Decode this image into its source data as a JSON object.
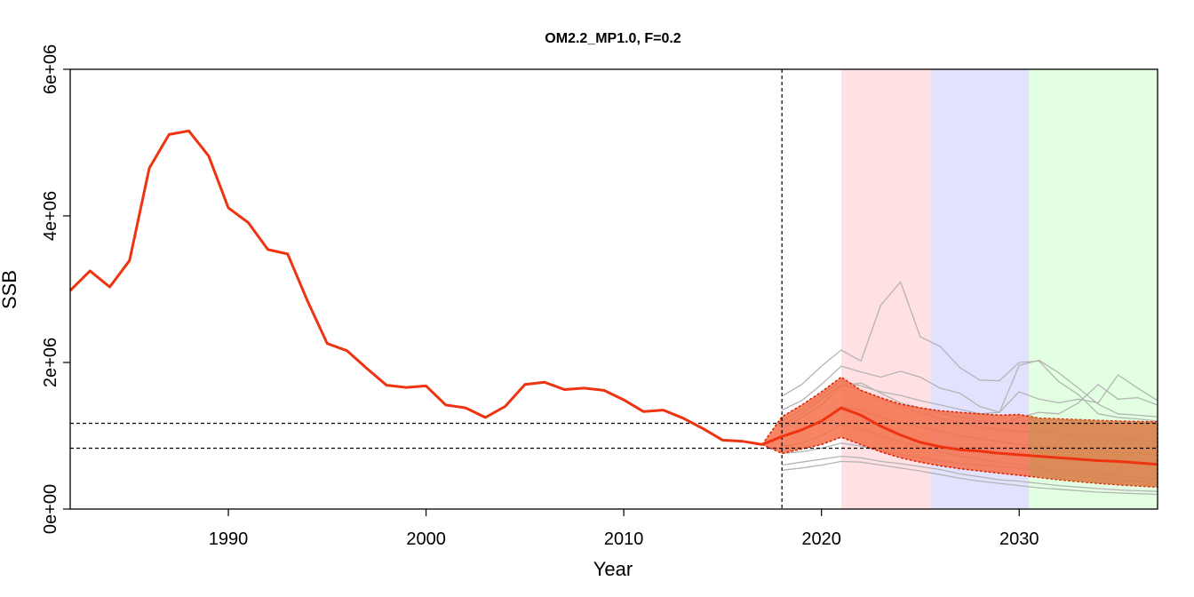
{
  "chart_data": {
    "type": "line",
    "title": "OM2.2_MP1.0, F=0.2",
    "xlabel": "Year",
    "ylabel": "SSB",
    "xlim": [
      1982,
      2037
    ],
    "ylim": [
      0,
      6000000
    ],
    "x_ticks": [
      1990,
      2000,
      2010,
      2020,
      2030
    ],
    "x_tick_labels": [
      "1990",
      "2000",
      "2010",
      "2020",
      "2030"
    ],
    "y_ticks": [
      0,
      2000000,
      4000000,
      6000000
    ],
    "y_tick_labels": [
      "0e+00",
      "2e+06",
      "4e+06",
      "6e+06"
    ],
    "grid": false,
    "legend": "none",
    "colors": {
      "main": "#ee3311",
      "ribbon": "#f4704a",
      "ribbon_late": "#d4904a",
      "iterations": "#b4b4b4",
      "period1": "#ffe0e3",
      "period2": "#e2e2ff",
      "period3": "#e2ffe2"
    },
    "shaded_periods": [
      {
        "from": 2021,
        "to": 2025.5,
        "color": "#ffe0e3"
      },
      {
        "from": 2025.5,
        "to": 2030.5,
        "color": "#e2e2ff"
      },
      {
        "from": 2030.5,
        "to": 2037,
        "color": "#e2ffe2"
      }
    ],
    "vertical_refline": 2018,
    "horizontal_reflines": [
      1170000,
      830000
    ],
    "historical": {
      "x": [
        1982,
        1983,
        1984,
        1985,
        1986,
        1987,
        1988,
        1989,
        1990,
        1991,
        1992,
        1993,
        1994,
        1995,
        1996,
        1997,
        1998,
        1999,
        2000,
        2001,
        2002,
        2003,
        2004,
        2005,
        2006,
        2007,
        2008,
        2009,
        2010,
        2011,
        2012,
        2013,
        2014,
        2015,
        2016,
        2017
      ],
      "y": [
        2980000,
        3250000,
        3030000,
        3390000,
        4650000,
        5110000,
        5160000,
        4820000,
        4110000,
        3910000,
        3540000,
        3480000,
        2840000,
        2260000,
        2160000,
        1920000,
        1690000,
        1660000,
        1680000,
        1420000,
        1380000,
        1250000,
        1400000,
        1700000,
        1730000,
        1630000,
        1650000,
        1620000,
        1490000,
        1330000,
        1350000,
        1240000,
        1100000,
        940000,
        925000,
        880000
      ]
    },
    "projection": {
      "x": [
        2017,
        2018,
        2019,
        2020,
        2021,
        2022,
        2023,
        2024,
        2025,
        2026,
        2027,
        2028,
        2029,
        2030,
        2031,
        2032,
        2033,
        2034,
        2035,
        2036,
        2037
      ],
      "median": [
        880000,
        990000,
        1080000,
        1200000,
        1380000,
        1280000,
        1130000,
        1010000,
        910000,
        850000,
        810000,
        790000,
        760000,
        740000,
        720000,
        700000,
        680000,
        660000,
        650000,
        630000,
        610000
      ],
      "upper": [
        880000,
        1260000,
        1420000,
        1600000,
        1800000,
        1620000,
        1520000,
        1430000,
        1380000,
        1340000,
        1320000,
        1300000,
        1280000,
        1290000,
        1240000,
        1230000,
        1220000,
        1210000,
        1200000,
        1195000,
        1190000
      ],
      "lower": [
        880000,
        760000,
        820000,
        880000,
        980000,
        880000,
        780000,
        700000,
        640000,
        590000,
        550000,
        520000,
        490000,
        460000,
        430000,
        400000,
        375000,
        350000,
        330000,
        315000,
        300000
      ]
    },
    "iterations": [
      {
        "x": [
          2018,
          2019,
          2020,
          2021,
          2022,
          2023,
          2024,
          2025,
          2026,
          2027,
          2028,
          2029,
          2030,
          2031,
          2032,
          2033,
          2034,
          2035,
          2036,
          2037
        ],
        "y": [
          1540000,
          1700000,
          1950000,
          2170000,
          2020000,
          2780000,
          3100000,
          2350000,
          2220000,
          1930000,
          1760000,
          1750000,
          2000000,
          2020000,
          1740000,
          1560000,
          1300000,
          1250000,
          1230000,
          1200000
        ]
      },
      {
        "x": [
          2018,
          2019,
          2020,
          2021,
          2022,
          2023,
          2024,
          2025,
          2026,
          2027,
          2028,
          2029,
          2030,
          2031,
          2032,
          2033,
          2034,
          2035,
          2036,
          2037
        ],
        "y": [
          1350000,
          1480000,
          1700000,
          1950000,
          1870000,
          1800000,
          1880000,
          1800000,
          1650000,
          1580000,
          1400000,
          1320000,
          1960000,
          2030000,
          1860000,
          1650000,
          1430000,
          1300000,
          1280000,
          1260000
        ]
      },
      {
        "x": [
          2018,
          2019,
          2020,
          2021,
          2022,
          2023,
          2024,
          2025,
          2026,
          2027,
          2028,
          2029,
          2030,
          2031,
          2032,
          2033,
          2034,
          2035,
          2036,
          2037
        ],
        "y": [
          1200000,
          1350000,
          1550000,
          1750000,
          1680000,
          1600000,
          1550000,
          1480000,
          1420000,
          1360000,
          1300000,
          1320000,
          1600000,
          1500000,
          1450000,
          1500000,
          1450000,
          1830000,
          1650000,
          1480000
        ]
      },
      {
        "x": [
          2018,
          2019,
          2020,
          2021,
          2022,
          2023,
          2024,
          2025,
          2026,
          2027,
          2028,
          2029,
          2030,
          2031,
          2032,
          2033,
          2034,
          2035,
          2036,
          2037
        ],
        "y": [
          1100000,
          1250000,
          1420000,
          1680000,
          1720000,
          1580000,
          1450000,
          1380000,
          1300000,
          1260000,
          1200000,
          1150000,
          1250000,
          1320000,
          1300000,
          1450000,
          1700000,
          1500000,
          1520000,
          1420000
        ]
      },
      {
        "x": [
          2018,
          2019,
          2020,
          2021,
          2022,
          2023,
          2024,
          2025,
          2026,
          2027,
          2028,
          2029,
          2030,
          2031,
          2032,
          2033,
          2034,
          2035,
          2036,
          2037
        ],
        "y": [
          600000,
          640000,
          680000,
          720000,
          700000,
          650000,
          620000,
          580000,
          540000,
          480000,
          440000,
          400000,
          380000,
          350000,
          320000,
          300000,
          280000,
          260000,
          250000,
          240000
        ]
      },
      {
        "x": [
          2018,
          2019,
          2020,
          2021,
          2022,
          2023,
          2024,
          2025,
          2026,
          2027,
          2028,
          2029,
          2030,
          2031,
          2032,
          2033,
          2034,
          2035,
          2036,
          2037
        ],
        "y": [
          530000,
          560000,
          600000,
          650000,
          640000,
          600000,
          560000,
          520000,
          470000,
          420000,
          380000,
          350000,
          320000,
          290000,
          270000,
          250000,
          230000,
          220000,
          210000,
          200000
        ]
      },
      {
        "x": [
          2018,
          2019,
          2020,
          2021,
          2022,
          2023,
          2024,
          2025,
          2026,
          2027,
          2028,
          2029,
          2030,
          2031,
          2032,
          2033,
          2034,
          2035,
          2036,
          2037
        ],
        "y": [
          760000,
          780000,
          830000,
          900000,
          860000,
          800000,
          740000,
          700000,
          660000,
          620000,
          600000,
          580000,
          560000,
          520000,
          480000,
          450000,
          420000,
          400000,
          380000,
          360000
        ]
      },
      {
        "x": [
          2018,
          2019,
          2020,
          2021,
          2022,
          2023,
          2024,
          2025,
          2026,
          2027,
          2028,
          2029,
          2030,
          2031,
          2032,
          2033,
          2034,
          2035,
          2036,
          2037
        ],
        "y": [
          980000,
          1080000,
          1200000,
          1400000,
          1350000,
          1250000,
          1180000,
          1120000,
          1060000,
          1000000,
          960000,
          920000,
          880000,
          860000,
          840000,
          820000,
          800000,
          780000,
          760000,
          740000
        ]
      },
      {
        "x": [
          2018,
          2019,
          2020,
          2021,
          2022,
          2023,
          2024,
          2025,
          2026,
          2027,
          2028,
          2029,
          2030,
          2031,
          2032,
          2033,
          2034,
          2035,
          2036,
          2037
        ],
        "y": [
          1150000,
          1300000,
          1500000,
          1700000,
          1620000,
          1500000,
          1400000,
          1320000,
          1240000,
          1180000,
          1120000,
          1080000,
          1060000,
          1050000,
          1030000,
          1000000,
          980000,
          960000,
          940000,
          920000
        ]
      },
      {
        "x": [
          2018,
          2019,
          2020,
          2021,
          2022,
          2023,
          2024,
          2025,
          2026,
          2027,
          2028,
          2029,
          2030,
          2031,
          2032,
          2033,
          2034,
          2035,
          2036,
          2037
        ],
        "y": [
          850000,
          900000,
          1000000,
          1150000,
          1100000,
          1000000,
          920000,
          850000,
          780000,
          720000,
          680000,
          640000,
          600000,
          560000,
          520000,
          500000,
          470000,
          450000,
          430000,
          410000
        ]
      }
    ]
  }
}
